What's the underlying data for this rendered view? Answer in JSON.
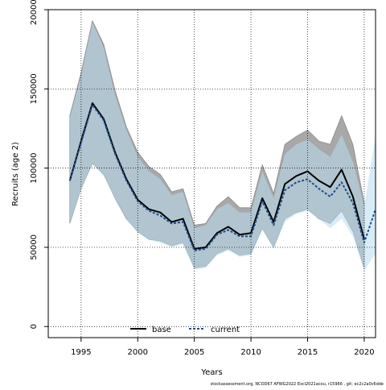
{
  "chart_data": {
    "type": "line",
    "xlabel": "Years",
    "ylabel": "Recruits (age 2)",
    "xlim": [
      1992.1,
      2021.0
    ],
    "ylim": [
      -7000,
      200000
    ],
    "x_ticks": [
      1995,
      2000,
      2005,
      2010,
      2015,
      2020
    ],
    "x_tick_labels": [
      "1995",
      "2000",
      "2005",
      "2010",
      "2015",
      "2020"
    ],
    "y_ticks": [
      0,
      50000,
      100000,
      150000,
      200000
    ],
    "y_tick_labels": [
      "0",
      "50000",
      "100000",
      "150000",
      "200000"
    ],
    "grid": true,
    "legend_position": "bottom-center",
    "footnote": "stockassessment.org,  NCOD67  AFWG2022  Excl2021acou,  r15966 ,  git:  ec2c2a0c6dde",
    "x": [
      1994,
      1995,
      1996,
      1997,
      1998,
      1999,
      2000,
      2001,
      2002,
      2003,
      2004,
      2005,
      2006,
      2007,
      2008,
      2009,
      2010,
      2011,
      2012,
      2013,
      2014,
      2015,
      2016,
      2017,
      2018,
      2019,
      2020,
      2021
    ],
    "series": [
      {
        "name": "base",
        "color": "#000000",
        "line_style": "solid",
        "band_color": "#a8a8a8",
        "values": [
          92000,
          117000,
          141000,
          131000,
          110000,
          93000,
          80000,
          74000,
          72000,
          66000,
          68000,
          49000,
          50000,
          59000,
          63000,
          58000,
          59000,
          81000,
          66000,
          90000,
          95000,
          98000,
          92000,
          88000,
          99000,
          82000,
          55000,
          null
        ],
        "lower": [
          65000,
          87000,
          103000,
          96000,
          81000,
          68000,
          60000,
          55000,
          54000,
          51000,
          53000,
          37000,
          38000,
          46000,
          49000,
          45000,
          46000,
          62000,
          50000,
          68000,
          72000,
          74000,
          68000,
          65000,
          73000,
          60000,
          37000,
          null
        ],
        "upper": [
          133000,
          160000,
          193000,
          178000,
          149000,
          126000,
          110000,
          101000,
          96000,
          85000,
          87000,
          64000,
          65000,
          76000,
          82000,
          75000,
          75000,
          102000,
          84000,
          115000,
          120000,
          124000,
          117000,
          115000,
          133000,
          115000,
          78000,
          null
        ]
      },
      {
        "name": "current",
        "color": "#1f4e8c",
        "line_style": "dashed",
        "band_color": "#b7dcee",
        "values": [
          92000,
          116000,
          140000,
          130000,
          109000,
          92000,
          79000,
          73000,
          70000,
          65000,
          66000,
          48000,
          49000,
          58000,
          61000,
          57000,
          57000,
          79000,
          64000,
          86000,
          91000,
          93000,
          87000,
          82000,
          91000,
          78000,
          53000,
          74000
        ],
        "lower": [
          65000,
          86000,
          103000,
          95000,
          81000,
          68000,
          59000,
          55000,
          53000,
          50000,
          52000,
          36000,
          37000,
          45000,
          48000,
          44000,
          45000,
          61000,
          49000,
          66000,
          71000,
          73000,
          68000,
          62000,
          68000,
          57000,
          35000,
          46000
        ],
        "upper": [
          132000,
          158000,
          192000,
          176000,
          146000,
          124000,
          107000,
          98000,
          93000,
          83000,
          85000,
          62000,
          64000,
          74000,
          78000,
          72000,
          72000,
          98000,
          81000,
          109000,
          115000,
          118000,
          112000,
          107000,
          121000,
          104000,
          76000,
          120000
        ]
      }
    ]
  }
}
